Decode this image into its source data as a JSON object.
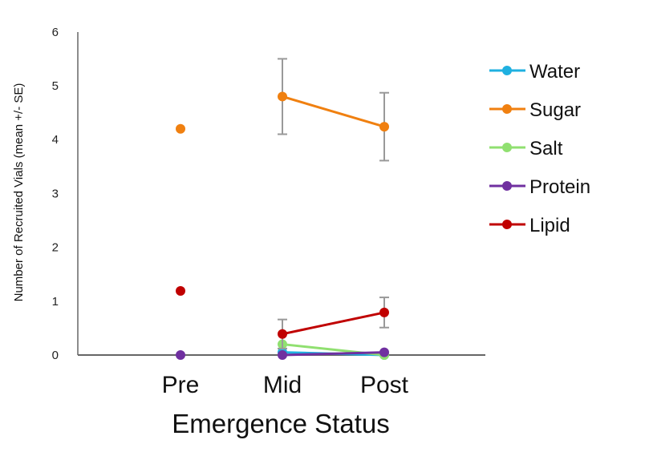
{
  "chart_data": {
    "type": "line",
    "title": "",
    "xlabel": "Emergence Status",
    "ylabel": "Number of Recruited Vials (mean +/- SE)",
    "categories": [
      "Pre",
      "Mid",
      "Post"
    ],
    "ylim": [
      0,
      6
    ],
    "yticks": [
      "0",
      "1",
      "2",
      "3",
      "4",
      "5",
      "6"
    ],
    "grid": false,
    "legend_position": "right",
    "series": [
      {
        "name": "Water",
        "color": "#1fb0e0",
        "values": [
          null,
          0.05,
          0
        ],
        "se": [
          null,
          null,
          null
        ],
        "pre_point": null
      },
      {
        "name": "Sugar",
        "color": "#f08010",
        "values": [
          null,
          4.8,
          4.24
        ],
        "se": [
          null,
          0.7,
          0.63
        ],
        "pre_point": 4.2
      },
      {
        "name": "Salt",
        "color": "#90e070",
        "values": [
          null,
          0.2,
          0
        ],
        "se": [
          null,
          null,
          null
        ],
        "pre_point": null
      },
      {
        "name": "Protein",
        "color": "#7030a0",
        "values": [
          null,
          0,
          0.05
        ],
        "se": [
          null,
          null,
          null
        ],
        "pre_point": 0
      },
      {
        "name": "Lipid",
        "color": "#c00000",
        "values": [
          null,
          0.39,
          0.79
        ],
        "se": [
          null,
          0.27,
          0.28
        ],
        "pre_point": 1.19
      }
    ]
  }
}
